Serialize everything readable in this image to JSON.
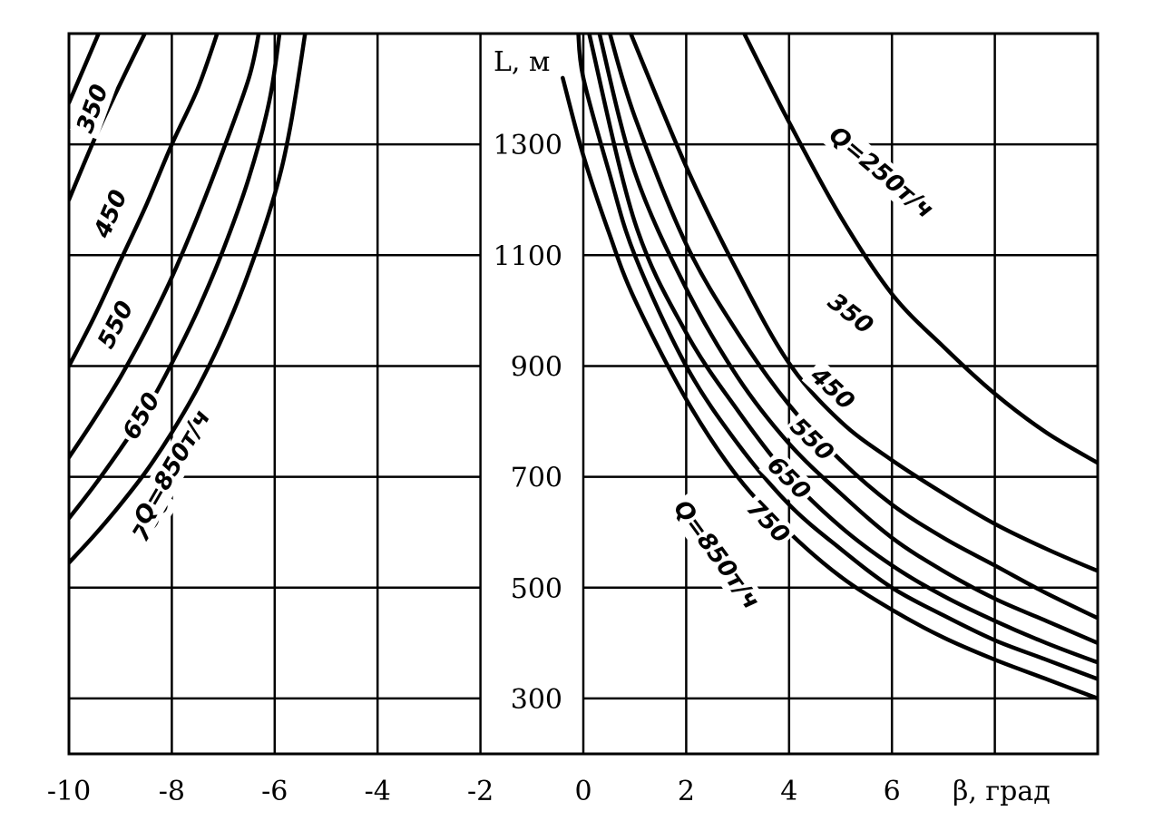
{
  "chart_data": {
    "type": "line",
    "title": "",
    "xlabel": "β, град",
    "ylabel": "L, м",
    "xlim": [
      -10,
      10
    ],
    "ylim": [
      200,
      1500
    ],
    "x_ticks": [
      -10,
      -8,
      -6,
      -4,
      -2,
      0,
      2,
      4,
      6
    ],
    "y_ticks": [
      300,
      500,
      700,
      900,
      1100,
      1300
    ],
    "grid": true,
    "legend": "inline labels on curves",
    "series": [
      {
        "side": "left",
        "label": "350",
        "points": [
          [
            -10,
            1375
          ],
          [
            -9.4,
            1505
          ]
        ]
      },
      {
        "side": "left",
        "label": "450",
        "points": [
          [
            -10,
            1200
          ],
          [
            -9.5,
            1310
          ],
          [
            -9,
            1410
          ],
          [
            -8.5,
            1505
          ]
        ]
      },
      {
        "side": "left",
        "label": "550",
        "points": [
          [
            -10,
            900
          ],
          [
            -9.5,
            990
          ],
          [
            -9,
            1090
          ],
          [
            -8.5,
            1190
          ],
          [
            -8,
            1300
          ],
          [
            -7.5,
            1400
          ],
          [
            -7.1,
            1505
          ]
        ]
      },
      {
        "side": "left",
        "label": "650",
        "points": [
          [
            -10,
            735
          ],
          [
            -9.5,
            805
          ],
          [
            -9,
            880
          ],
          [
            -8.5,
            965
          ],
          [
            -8,
            1060
          ],
          [
            -7.5,
            1170
          ],
          [
            -7,
            1290
          ],
          [
            -6.5,
            1420
          ],
          [
            -6.3,
            1505
          ]
        ]
      },
      {
        "side": "left",
        "label": "750",
        "points": [
          [
            -10,
            625
          ],
          [
            -9.5,
            685
          ],
          [
            -9,
            750
          ],
          [
            -8.5,
            820
          ],
          [
            -8,
            905
          ],
          [
            -7.5,
            1000
          ],
          [
            -7,
            1110
          ],
          [
            -6.5,
            1240
          ],
          [
            -6.1,
            1380
          ],
          [
            -5.9,
            1505
          ]
        ]
      },
      {
        "side": "left",
        "label": "Q=850т/ч",
        "points": [
          [
            -10,
            545
          ],
          [
            -9.5,
            595
          ],
          [
            -9,
            650
          ],
          [
            -8.5,
            710
          ],
          [
            -8,
            780
          ],
          [
            -7.5,
            860
          ],
          [
            -7,
            955
          ],
          [
            -6.5,
            1070
          ],
          [
            -6,
            1210
          ],
          [
            -5.7,
            1330
          ],
          [
            -5.4,
            1505
          ]
        ]
      },
      {
        "side": "right",
        "label": "Q=250т/ч",
        "points": [
          [
            3.1,
            1505
          ],
          [
            4,
            1340
          ],
          [
            5,
            1170
          ],
          [
            6,
            1030
          ],
          [
            7,
            935
          ],
          [
            8,
            850
          ],
          [
            9,
            780
          ],
          [
            10,
            725
          ]
        ]
      },
      {
        "side": "right",
        "label": "350",
        "points": [
          [
            0.9,
            1505
          ],
          [
            2,
            1260
          ],
          [
            3,
            1070
          ],
          [
            4,
            905
          ],
          [
            5,
            800
          ],
          [
            6,
            730
          ],
          [
            7,
            670
          ],
          [
            8,
            615
          ],
          [
            9,
            570
          ],
          [
            10,
            530
          ]
        ]
      },
      {
        "side": "right",
        "label": "450",
        "points": [
          [
            0.5,
            1505
          ],
          [
            1,
            1350
          ],
          [
            2,
            1120
          ],
          [
            3,
            960
          ],
          [
            4,
            830
          ],
          [
            5,
            730
          ],
          [
            6,
            650
          ],
          [
            7,
            590
          ],
          [
            8,
            540
          ],
          [
            9,
            490
          ],
          [
            10,
            445
          ]
        ]
      },
      {
        "side": "right",
        "label": "550",
        "points": [
          [
            0.3,
            1505
          ],
          [
            1,
            1250
          ],
          [
            2,
            1040
          ],
          [
            3,
            880
          ],
          [
            4,
            760
          ],
          [
            5,
            670
          ],
          [
            6,
            590
          ],
          [
            7,
            530
          ],
          [
            8,
            480
          ],
          [
            9,
            440
          ],
          [
            10,
            400
          ]
        ]
      },
      {
        "side": "right",
        "label": "650",
        "points": [
          [
            0.1,
            1505
          ],
          [
            1,
            1160
          ],
          [
            2,
            960
          ],
          [
            3,
            820
          ],
          [
            4,
            700
          ],
          [
            5,
            610
          ],
          [
            6,
            540
          ],
          [
            7,
            485
          ],
          [
            8,
            440
          ],
          [
            9,
            400
          ],
          [
            10,
            365
          ]
        ]
      },
      {
        "side": "right",
        "label": "750",
        "points": [
          [
            -0.1,
            1505
          ],
          [
            0,
            1420
          ],
          [
            0.5,
            1250
          ],
          [
            1,
            1100
          ],
          [
            2,
            900
          ],
          [
            3,
            760
          ],
          [
            4,
            650
          ],
          [
            5,
            570
          ],
          [
            6,
            500
          ],
          [
            7,
            450
          ],
          [
            8,
            405
          ],
          [
            9,
            370
          ],
          [
            10,
            335
          ]
        ]
      },
      {
        "side": "right",
        "label": "Q=850т/ч",
        "points": [
          [
            -0.4,
            1420
          ],
          [
            0,
            1280
          ],
          [
            0.5,
            1140
          ],
          [
            1,
            1020
          ],
          [
            2,
            840
          ],
          [
            3,
            700
          ],
          [
            4,
            600
          ],
          [
            5,
            520
          ],
          [
            6,
            460
          ],
          [
            7,
            410
          ],
          [
            8,
            370
          ],
          [
            9,
            335
          ],
          [
            10,
            300
          ]
        ]
      }
    ],
    "curve_labels": [
      {
        "text": "350",
        "x": -9.55,
        "y": 1365,
        "angle": -70
      },
      {
        "text": "450",
        "x": -9.2,
        "y": 1175,
        "angle": -67
      },
      {
        "text": "550",
        "x": -9.1,
        "y": 975,
        "angle": -63
      },
      {
        "text": "650",
        "x": -8.6,
        "y": 810,
        "angle": -60
      },
      {
        "text": "750",
        "x": -8.4,
        "y": 625,
        "angle": -58
      },
      {
        "text": "Q=850т/ч",
        "x": -8.0,
        "y": 718,
        "angle": -60
      },
      {
        "text": "Q=250т/ч",
        "x": 5.8,
        "y": 1250,
        "angle": 40
      },
      {
        "text": "350",
        "x": 5.2,
        "y": 995,
        "angle": 38
      },
      {
        "text": "450",
        "x": 4.85,
        "y": 860,
        "angle": 43
      },
      {
        "text": "550",
        "x": 4.45,
        "y": 768,
        "angle": 44
      },
      {
        "text": "650",
        "x": 4.0,
        "y": 698,
        "angle": 45
      },
      {
        "text": "750",
        "x": 3.6,
        "y": 620,
        "angle": 46
      },
      {
        "text": "Q=850т/ч",
        "x": 2.6,
        "y": 560,
        "angle": 54
      }
    ]
  }
}
